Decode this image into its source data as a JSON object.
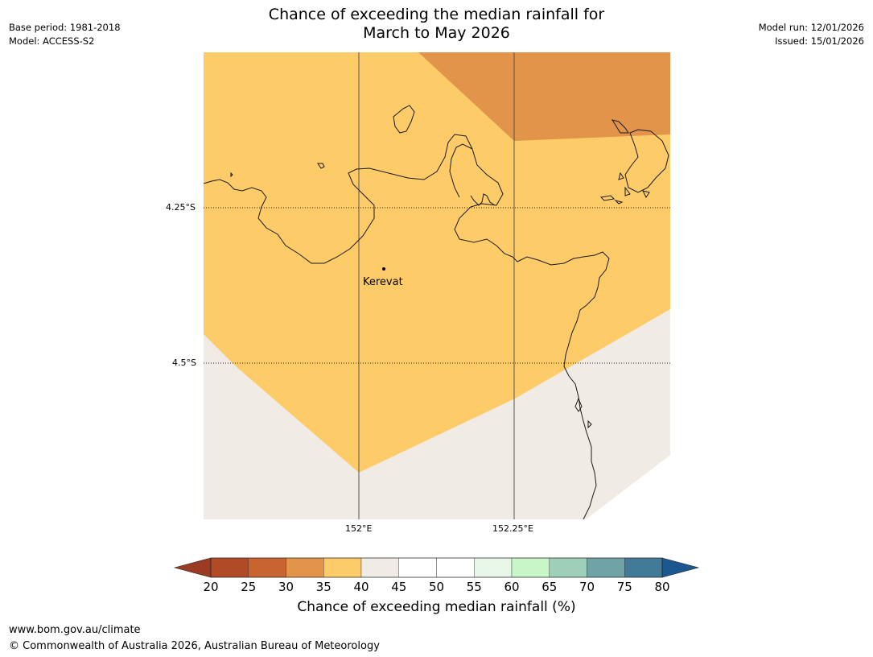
{
  "title": {
    "line1": "Chance of exceeding the median rainfall for",
    "line2": "March to May 2026"
  },
  "meta": {
    "base_period": "Base period: 1981-2018",
    "model": "Model: ACCESS-S2",
    "model_run": "Model run: 12/01/2026",
    "issued": "Issued: 15/01/2026"
  },
  "map": {
    "place": "Kerevat",
    "lat_labels": [
      "4.25°S",
      "4.5°S"
    ],
    "lon_labels": [
      "152°E",
      "152.25°E"
    ]
  },
  "colorbar": {
    "ticks": [
      "20",
      "25",
      "30",
      "35",
      "40",
      "45",
      "50",
      "55",
      "60",
      "65",
      "70",
      "75",
      "80"
    ],
    "colors": [
      "#9b3b23",
      "#b14a26",
      "#c9632f",
      "#e1944a",
      "#fdcb68",
      "#f0ebe5",
      "#ffffff",
      "#ffffff",
      "#e8f6e8",
      "#c8f6c8",
      "#9ecfb8",
      "#6fa3a6",
      "#427b98",
      "#1d5790"
    ],
    "label": "Chance of exceeding median rainfall (%)"
  },
  "footer": {
    "url": "www.bom.gov.au/climate",
    "copyright": "© Commonwealth of Australia 2026, Australian Bureau of Meteorology"
  }
}
